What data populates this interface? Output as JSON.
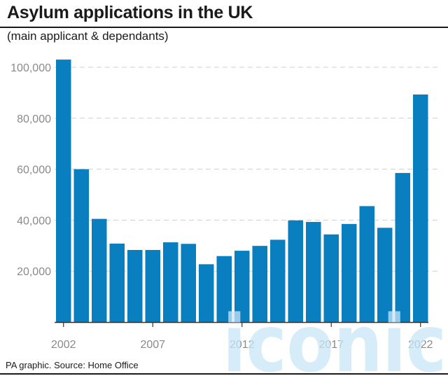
{
  "header": {
    "title": "Asylum applications in the UK",
    "subtitle": "(main applicant & dependants)"
  },
  "footer": {
    "source": "PA graphic. Source: Home Office"
  },
  "watermark": {
    "text": "iconic"
  },
  "colors": {
    "bar": "#0a7fc0",
    "axis_text": "#8a8a8a",
    "gridline": "#cfcfcf",
    "baseline": "#333333",
    "text": "#1a1a1a",
    "watermark": "#c9e6f7"
  },
  "chart_data": {
    "type": "bar",
    "title": "Asylum applications in the UK",
    "subtitle": "(main applicant & dependants)",
    "xlabel": "",
    "ylabel": "",
    "categories": [
      "2002",
      "2003",
      "2004",
      "2005",
      "2006",
      "2007",
      "2008",
      "2009",
      "2010",
      "2011",
      "2012",
      "2013",
      "2014",
      "2015",
      "2016",
      "2017",
      "2018",
      "2019",
      "2020",
      "2021",
      "2022"
    ],
    "values": [
      103000,
      60000,
      40500,
      30800,
      28300,
      28300,
      31300,
      30700,
      22700,
      25900,
      28000,
      29900,
      32300,
      39900,
      39300,
      34400,
      38500,
      45500,
      37000,
      58500,
      89300
    ],
    "ylim": [
      0,
      100000
    ],
    "yticks": [
      20000,
      40000,
      60000,
      80000,
      100000
    ],
    "ytick_labels": [
      "20,000",
      "40,000",
      "60,000",
      "80,000",
      "100,000"
    ],
    "xtick_labels": [
      "2002",
      "2007",
      "2012",
      "2017",
      "2022"
    ],
    "grid": true
  }
}
